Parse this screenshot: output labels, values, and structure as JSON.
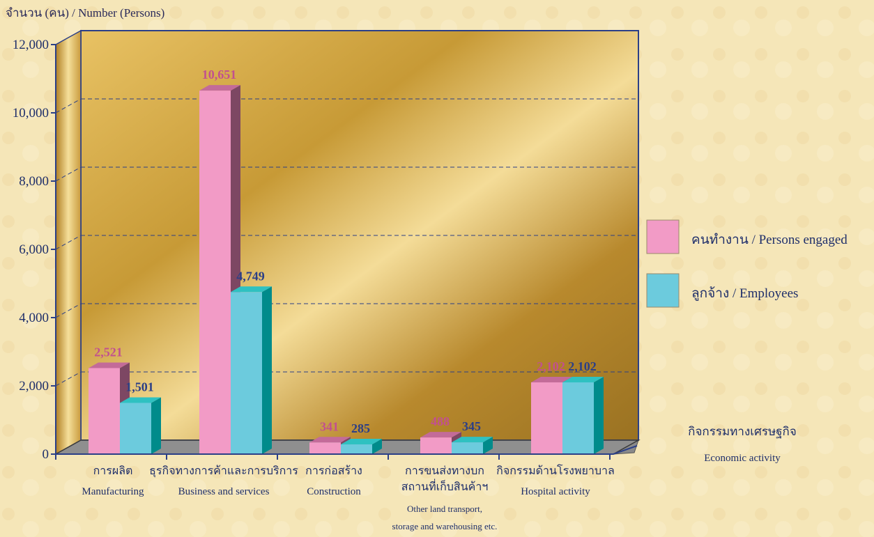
{
  "chart_data": {
    "type": "bar",
    "ylabel": "จำนวน (คน) / Number  (Persons)",
    "ylim": [
      0,
      12000
    ],
    "yticks": [
      "0",
      "2,000",
      "4,000",
      "6,000",
      "8,000",
      "10,000",
      "12,000"
    ],
    "categories": [
      {
        "th": "การผลิต",
        "en": [
          "Manufacturing"
        ]
      },
      {
        "th": "ธุรกิจทางการค้าและการบริการ",
        "en": [
          "Business and services"
        ]
      },
      {
        "th": "การก่อสร้าง",
        "en": [
          "Construction"
        ]
      },
      {
        "th": "การขนส่งทางบก",
        "th2": "สถานที่เก็บสินค้าฯ",
        "en": [
          "Other land transport,",
          "storage and warehousing etc."
        ]
      },
      {
        "th": "กิจกรรมด้านโรงพยาบาล",
        "en": [
          "Hospital activity"
        ]
      }
    ],
    "series": [
      {
        "name": "คนทำงาน / Persons engaged",
        "values": [
          2521,
          10651,
          341,
          488,
          2102
        ],
        "labels": [
          "2,521",
          "10,651",
          "341",
          "488",
          "2,102"
        ]
      },
      {
        "name": "ลูกจ้าง / Employees",
        "values": [
          1501,
          4749,
          285,
          345,
          2102
        ],
        "labels": [
          "1,501",
          "4,749",
          "285",
          "345",
          "2,102"
        ]
      }
    ],
    "colors": {
      "persons": "#f29bc6",
      "persons_side": "#7d4763",
      "persons_top": "#c36b99",
      "employees": "#6ccbdd",
      "employees_side": "#008b8b",
      "employees_top": "#2fc1c1"
    },
    "grid": true,
    "legend_position": "right",
    "xlabel_note": {
      "th": "กิจกรรมทางเศรษฐกิจ",
      "en": "Economic activity"
    }
  }
}
